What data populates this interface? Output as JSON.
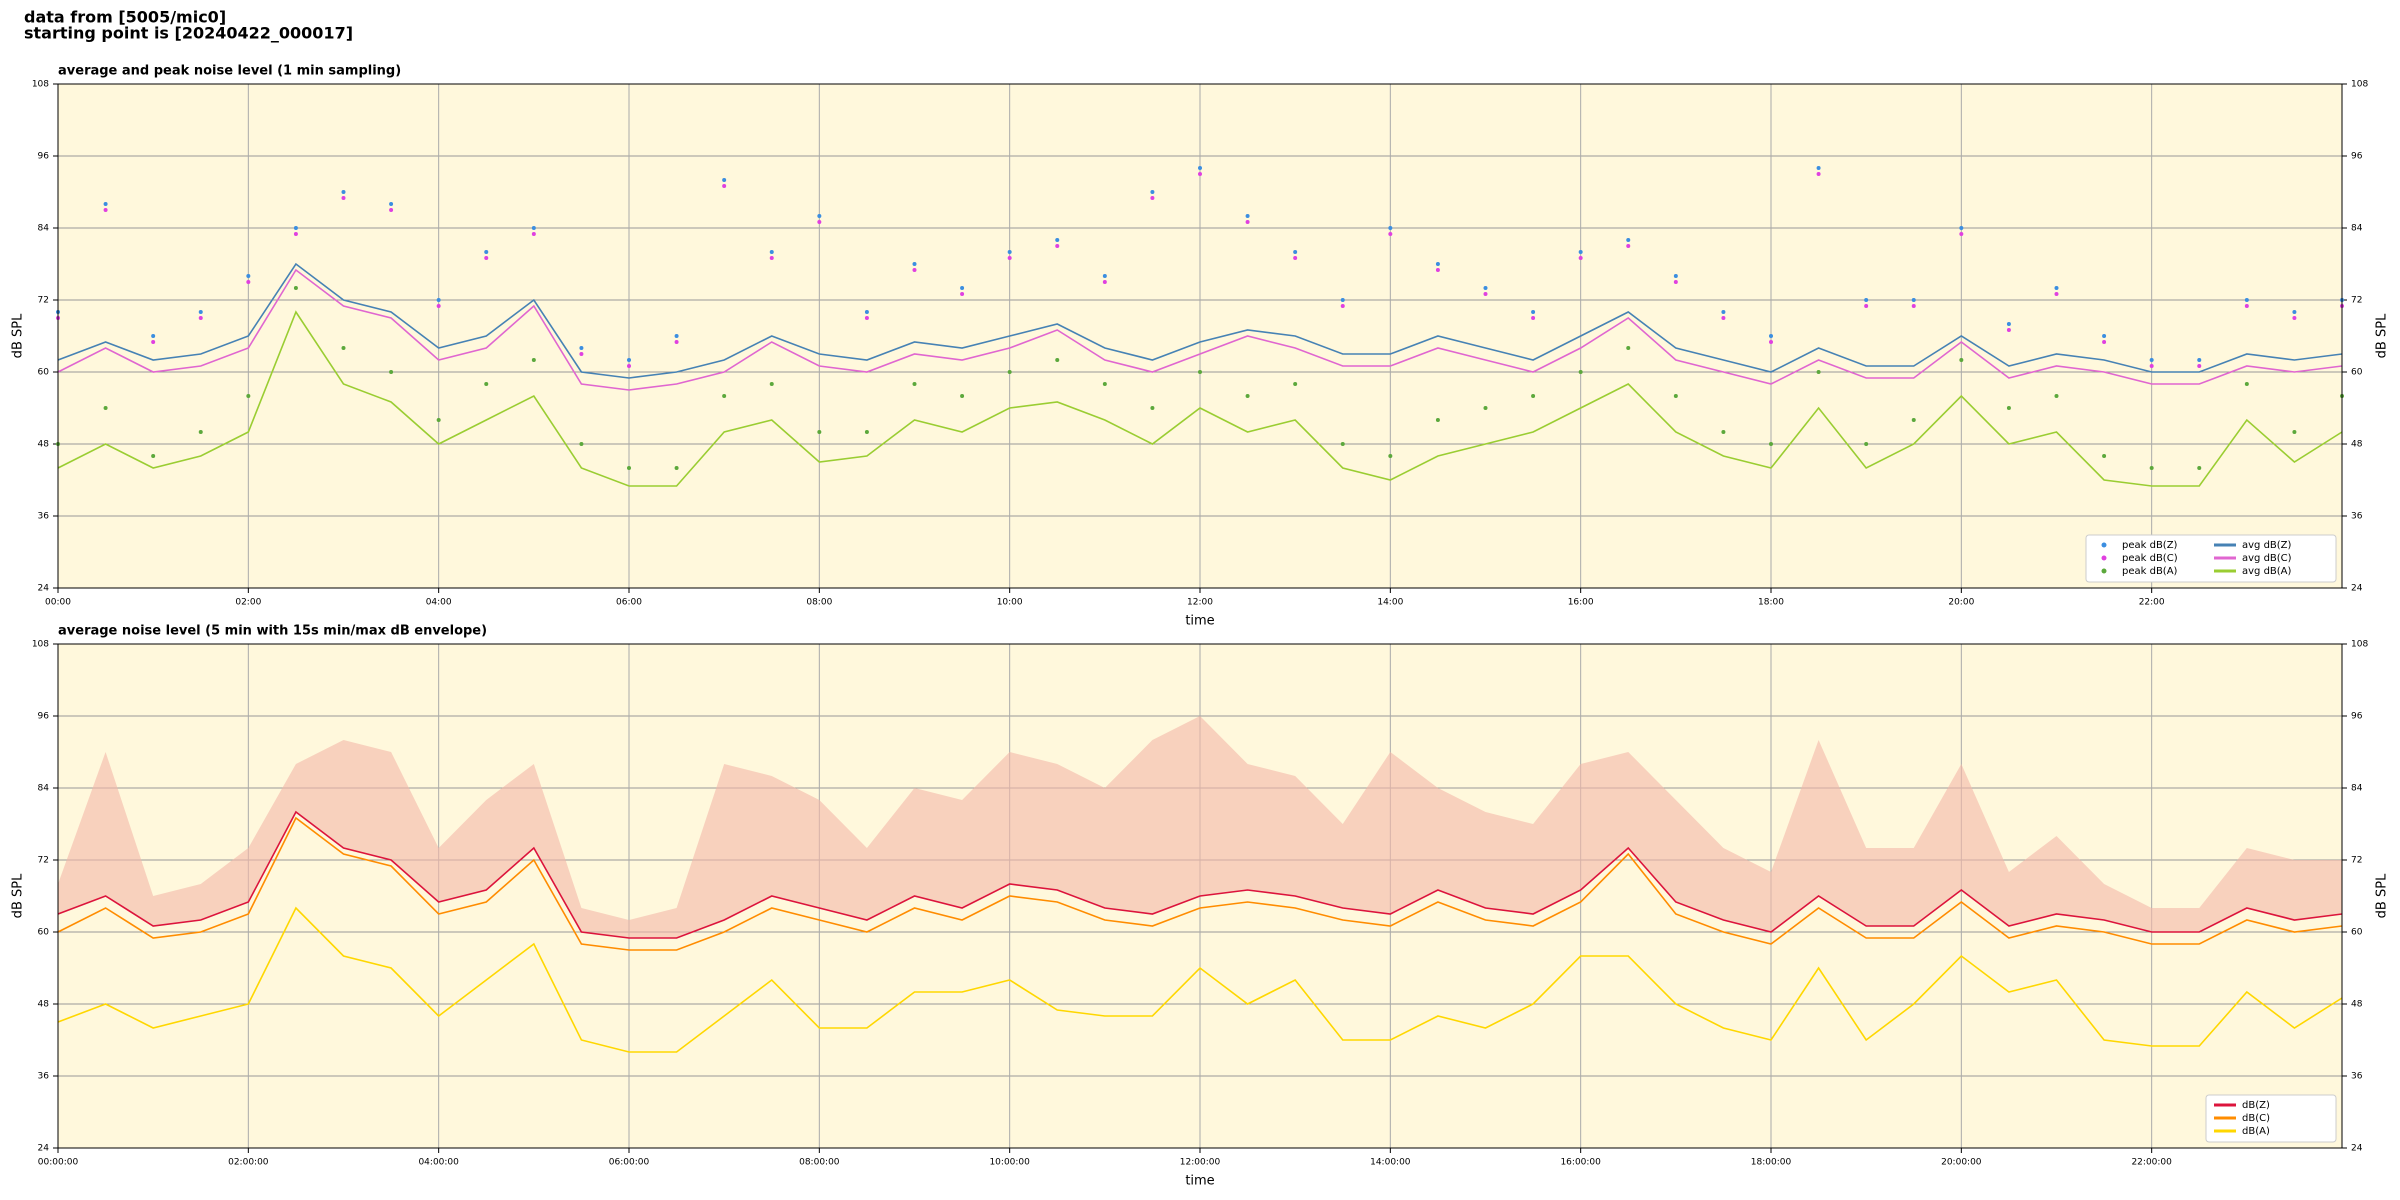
{
  "header": {
    "line1": "data from [5005/mic0]",
    "line2": "starting point is [20240422_000017]"
  },
  "chart_data": [
    {
      "type": "line",
      "title": "average and peak noise level (1 min sampling)",
      "ylabel": "dB SPL",
      "xlabel": "time",
      "xlim": [
        0,
        24
      ],
      "ylim": [
        24,
        108
      ],
      "yticks": [
        24,
        36,
        48,
        60,
        72,
        84,
        96,
        108
      ],
      "xticks": [
        {
          "value": 0,
          "label": "00:00"
        },
        {
          "value": 2,
          "label": "02:00"
        },
        {
          "value": 4,
          "label": "04:00"
        },
        {
          "value": 6,
          "label": "06:00"
        },
        {
          "value": 8,
          "label": "08:00"
        },
        {
          "value": 10,
          "label": "10:00"
        },
        {
          "value": 12,
          "label": "12:00"
        },
        {
          "value": 14,
          "label": "14:00"
        },
        {
          "value": 16,
          "label": "16:00"
        },
        {
          "value": 18,
          "label": "18:00"
        },
        {
          "value": 20,
          "label": "20:00"
        },
        {
          "value": 22,
          "label": "22:00"
        }
      ],
      "grid": true,
      "legend": "lower right",
      "background": "#fff8dc",
      "x": [
        0,
        0.5,
        1,
        1.5,
        2,
        2.5,
        3,
        3.5,
        4,
        4.5,
        5,
        5.5,
        6,
        6.5,
        7,
        7.5,
        8,
        8.5,
        9,
        9.5,
        10,
        10.5,
        11,
        11.5,
        12,
        12.5,
        13,
        13.5,
        14,
        14.5,
        15,
        15.5,
        16,
        16.5,
        17,
        17.5,
        18,
        18.5,
        19,
        19.5,
        20,
        20.5,
        21,
        21.5,
        22,
        22.5,
        23,
        23.5,
        24
      ],
      "series": [
        {
          "name": "peak dB(Z)",
          "style": "markers",
          "color": "#3b8ee0",
          "values": [
            70,
            88,
            66,
            70,
            76,
            84,
            90,
            88,
            72,
            80,
            84,
            64,
            62,
            66,
            92,
            80,
            86,
            70,
            78,
            74,
            80,
            82,
            76,
            90,
            94,
            86,
            80,
            72,
            84,
            78,
            74,
            70,
            80,
            82,
            76,
            70,
            66,
            94,
            72,
            72,
            84,
            68,
            74,
            66,
            62,
            62,
            72,
            70,
            72
          ]
        },
        {
          "name": "peak dB(C)",
          "style": "markers",
          "color": "#e040e0",
          "values": [
            69,
            87,
            65,
            69,
            75,
            83,
            89,
            87,
            71,
            79,
            83,
            63,
            61,
            65,
            91,
            79,
            85,
            69,
            77,
            73,
            79,
            81,
            75,
            89,
            93,
            85,
            79,
            71,
            83,
            77,
            73,
            69,
            79,
            81,
            75,
            69,
            65,
            93,
            71,
            71,
            83,
            67,
            73,
            65,
            61,
            61,
            71,
            69,
            71
          ]
        },
        {
          "name": "peak dB(A)",
          "style": "markers",
          "color": "#5ca83c",
          "values": [
            48,
            54,
            46,
            50,
            56,
            74,
            64,
            60,
            52,
            58,
            62,
            48,
            44,
            44,
            56,
            58,
            50,
            50,
            58,
            56,
            60,
            62,
            58,
            54,
            60,
            56,
            58,
            48,
            46,
            52,
            54,
            56,
            60,
            64,
            56,
            50,
            48,
            60,
            48,
            52,
            62,
            54,
            56,
            46,
            44,
            44,
            58,
            50,
            56
          ]
        },
        {
          "name": "avg dB(Z)",
          "style": "line",
          "color": "#4682b4",
          "values": [
            62,
            65,
            62,
            63,
            66,
            78,
            72,
            70,
            64,
            66,
            72,
            60,
            59,
            60,
            62,
            66,
            63,
            62,
            65,
            64,
            66,
            68,
            64,
            62,
            65,
            67,
            66,
            63,
            63,
            66,
            64,
            62,
            66,
            70,
            64,
            62,
            60,
            64,
            61,
            61,
            66,
            61,
            63,
            62,
            60,
            60,
            63,
            62,
            63
          ]
        },
        {
          "name": "avg dB(C)",
          "style": "line",
          "color": "#e066d0",
          "values": [
            60,
            64,
            60,
            61,
            64,
            77,
            71,
            69,
            62,
            64,
            71,
            58,
            57,
            58,
            60,
            65,
            61,
            60,
            63,
            62,
            64,
            67,
            62,
            60,
            63,
            66,
            64,
            61,
            61,
            64,
            62,
            60,
            64,
            69,
            62,
            60,
            58,
            62,
            59,
            59,
            65,
            59,
            61,
            60,
            58,
            58,
            61,
            60,
            61
          ]
        },
        {
          "name": "avg dB(A)",
          "style": "line",
          "color": "#9acd32",
          "values": [
            44,
            48,
            44,
            46,
            50,
            70,
            58,
            55,
            48,
            52,
            56,
            44,
            41,
            41,
            50,
            52,
            45,
            46,
            52,
            50,
            54,
            55,
            52,
            48,
            54,
            50,
            52,
            44,
            42,
            46,
            48,
            50,
            54,
            58,
            50,
            46,
            44,
            54,
            44,
            48,
            56,
            48,
            50,
            42,
            41,
            41,
            52,
            45,
            50
          ]
        }
      ]
    },
    {
      "type": "line",
      "title": "average noise level (5 min with 15s min/max dB envelope)",
      "ylabel": "dB SPL",
      "xlabel": "time",
      "xlim": [
        0,
        24
      ],
      "ylim": [
        24,
        108
      ],
      "yticks": [
        24,
        36,
        48,
        60,
        72,
        84,
        96,
        108
      ],
      "xticks": [
        {
          "value": 0,
          "label": "00:00:00"
        },
        {
          "value": 2,
          "label": "02:00:00"
        },
        {
          "value": 4,
          "label": "04:00:00"
        },
        {
          "value": 6,
          "label": "06:00:00"
        },
        {
          "value": 8,
          "label": "08:00:00"
        },
        {
          "value": 10,
          "label": "10:00:00"
        },
        {
          "value": 12,
          "label": "12:00:00"
        },
        {
          "value": 14,
          "label": "14:00:00"
        },
        {
          "value": 16,
          "label": "16:00:00"
        },
        {
          "value": 18,
          "label": "18:00:00"
        },
        {
          "value": 20,
          "label": "20:00:00"
        },
        {
          "value": 22,
          "label": "22:00:00"
        }
      ],
      "grid": true,
      "legend": "lower right",
      "background": "#fff8dc",
      "x": [
        0,
        0.5,
        1,
        1.5,
        2,
        2.5,
        3,
        3.5,
        4,
        4.5,
        5,
        5.5,
        6,
        6.5,
        7,
        7.5,
        8,
        8.5,
        9,
        9.5,
        10,
        10.5,
        11,
        11.5,
        12,
        12.5,
        13,
        13.5,
        14,
        14.5,
        15,
        15.5,
        16,
        16.5,
        17,
        17.5,
        18,
        18.5,
        19,
        19.5,
        20,
        20.5,
        21,
        21.5,
        22,
        22.5,
        23,
        23.5,
        24
      ],
      "envelope": {
        "color": "#f4b8a8",
        "values": [
          68,
          90,
          66,
          68,
          74,
          88,
          92,
          90,
          74,
          82,
          88,
          64,
          62,
          64,
          88,
          86,
          82,
          74,
          84,
          82,
          90,
          88,
          84,
          92,
          96,
          88,
          86,
          78,
          90,
          84,
          80,
          78,
          88,
          90,
          82,
          74,
          70,
          92,
          74,
          74,
          88,
          70,
          76,
          68,
          64,
          64,
          74,
          72,
          72
        ]
      },
      "series": [
        {
          "name": "dB(Z)",
          "style": "line",
          "color": "#dc143c",
          "values": [
            63,
            66,
            61,
            62,
            65,
            80,
            74,
            72,
            65,
            67,
            74,
            60,
            59,
            59,
            62,
            66,
            64,
            62,
            66,
            64,
            68,
            67,
            64,
            63,
            66,
            67,
            66,
            64,
            63,
            67,
            64,
            63,
            67,
            74,
            65,
            62,
            60,
            66,
            61,
            61,
            67,
            61,
            63,
            62,
            60,
            60,
            64,
            62,
            63
          ]
        },
        {
          "name": "dB(C)",
          "style": "line",
          "color": "#ff8c00",
          "values": [
            60,
            64,
            59,
            60,
            63,
            79,
            73,
            71,
            63,
            65,
            72,
            58,
            57,
            57,
            60,
            64,
            62,
            60,
            64,
            62,
            66,
            65,
            62,
            61,
            64,
            65,
            64,
            62,
            61,
            65,
            62,
            61,
            65,
            73,
            63,
            60,
            58,
            64,
            59,
            59,
            65,
            59,
            61,
            60,
            58,
            58,
            62,
            60,
            61
          ]
        },
        {
          "name": "dB(A)",
          "style": "line",
          "color": "#ffd700",
          "values": [
            45,
            48,
            44,
            46,
            48,
            64,
            56,
            54,
            46,
            52,
            58,
            42,
            40,
            40,
            46,
            52,
            44,
            44,
            50,
            50,
            52,
            47,
            46,
            46,
            54,
            48,
            52,
            42,
            42,
            46,
            44,
            48,
            56,
            56,
            48,
            44,
            42,
            54,
            42,
            48,
            56,
            50,
            52,
            42,
            41,
            41,
            50,
            44,
            49
          ]
        }
      ]
    }
  ]
}
